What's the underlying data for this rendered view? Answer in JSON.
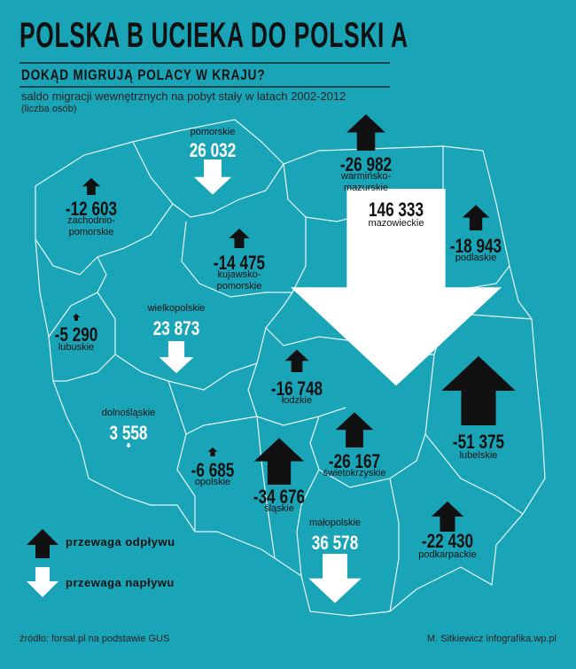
{
  "title": "POLSKA B UCIEKA DO POLSKI A",
  "subtitle": "DOKĄD MIGRUJĄ POLACY W KRAJU?",
  "description": "saldo migracji wewnętrznych na pobyt stały w latach 2002-2012",
  "unit": "(liczba osób)",
  "regions": [
    {
      "name": "pomorskie",
      "value": 26032,
      "value_label": "26 032"
    },
    {
      "name": "warmińsko-mazurskie",
      "value": -26982,
      "value_label": "-26 982"
    },
    {
      "name": "mazowieckie",
      "value": 146333,
      "value_label": "146 333"
    },
    {
      "name": "zachodnio-pomorskie",
      "value": -12603,
      "value_label": "-12 603"
    },
    {
      "name": "podlaskie",
      "value": -18943,
      "value_label": "-18 943"
    },
    {
      "name": "kujawsko-pomorskie",
      "value": -14475,
      "value_label": "-14 475"
    },
    {
      "name": "lubuskie",
      "value": -5290,
      "value_label": "-5 290"
    },
    {
      "name": "wielkopolskie",
      "value": 23873,
      "value_label": "23 873"
    },
    {
      "name": "łodzkie",
      "value": -16748,
      "value_label": "-16 748"
    },
    {
      "name": "lubelskie",
      "value": -51375,
      "value_label": "-51 375"
    },
    {
      "name": "dolnośląskie",
      "value": 3558,
      "value_label": "3 558"
    },
    {
      "name": "opolskie",
      "value": -6685,
      "value_label": "-6 685"
    },
    {
      "name": "śląskie",
      "value": -34676,
      "value_label": "-34 676"
    },
    {
      "name": "świetokrzyskie",
      "value": -26167,
      "value_label": "-26 167"
    },
    {
      "name": "małopolskie",
      "value": 36578,
      "value_label": "36 578"
    },
    {
      "name": "podkarpackie",
      "value": -22430,
      "value_label": "-22 430"
    }
  ],
  "legend": [
    {
      "label": "przewaga odpływu"
    },
    {
      "label": "przewaga napływu"
    }
  ],
  "source": "źródło: forsal.pl na podstawie GUS",
  "credit": "M. Sitkiewicz infografika.wp.pl"
}
